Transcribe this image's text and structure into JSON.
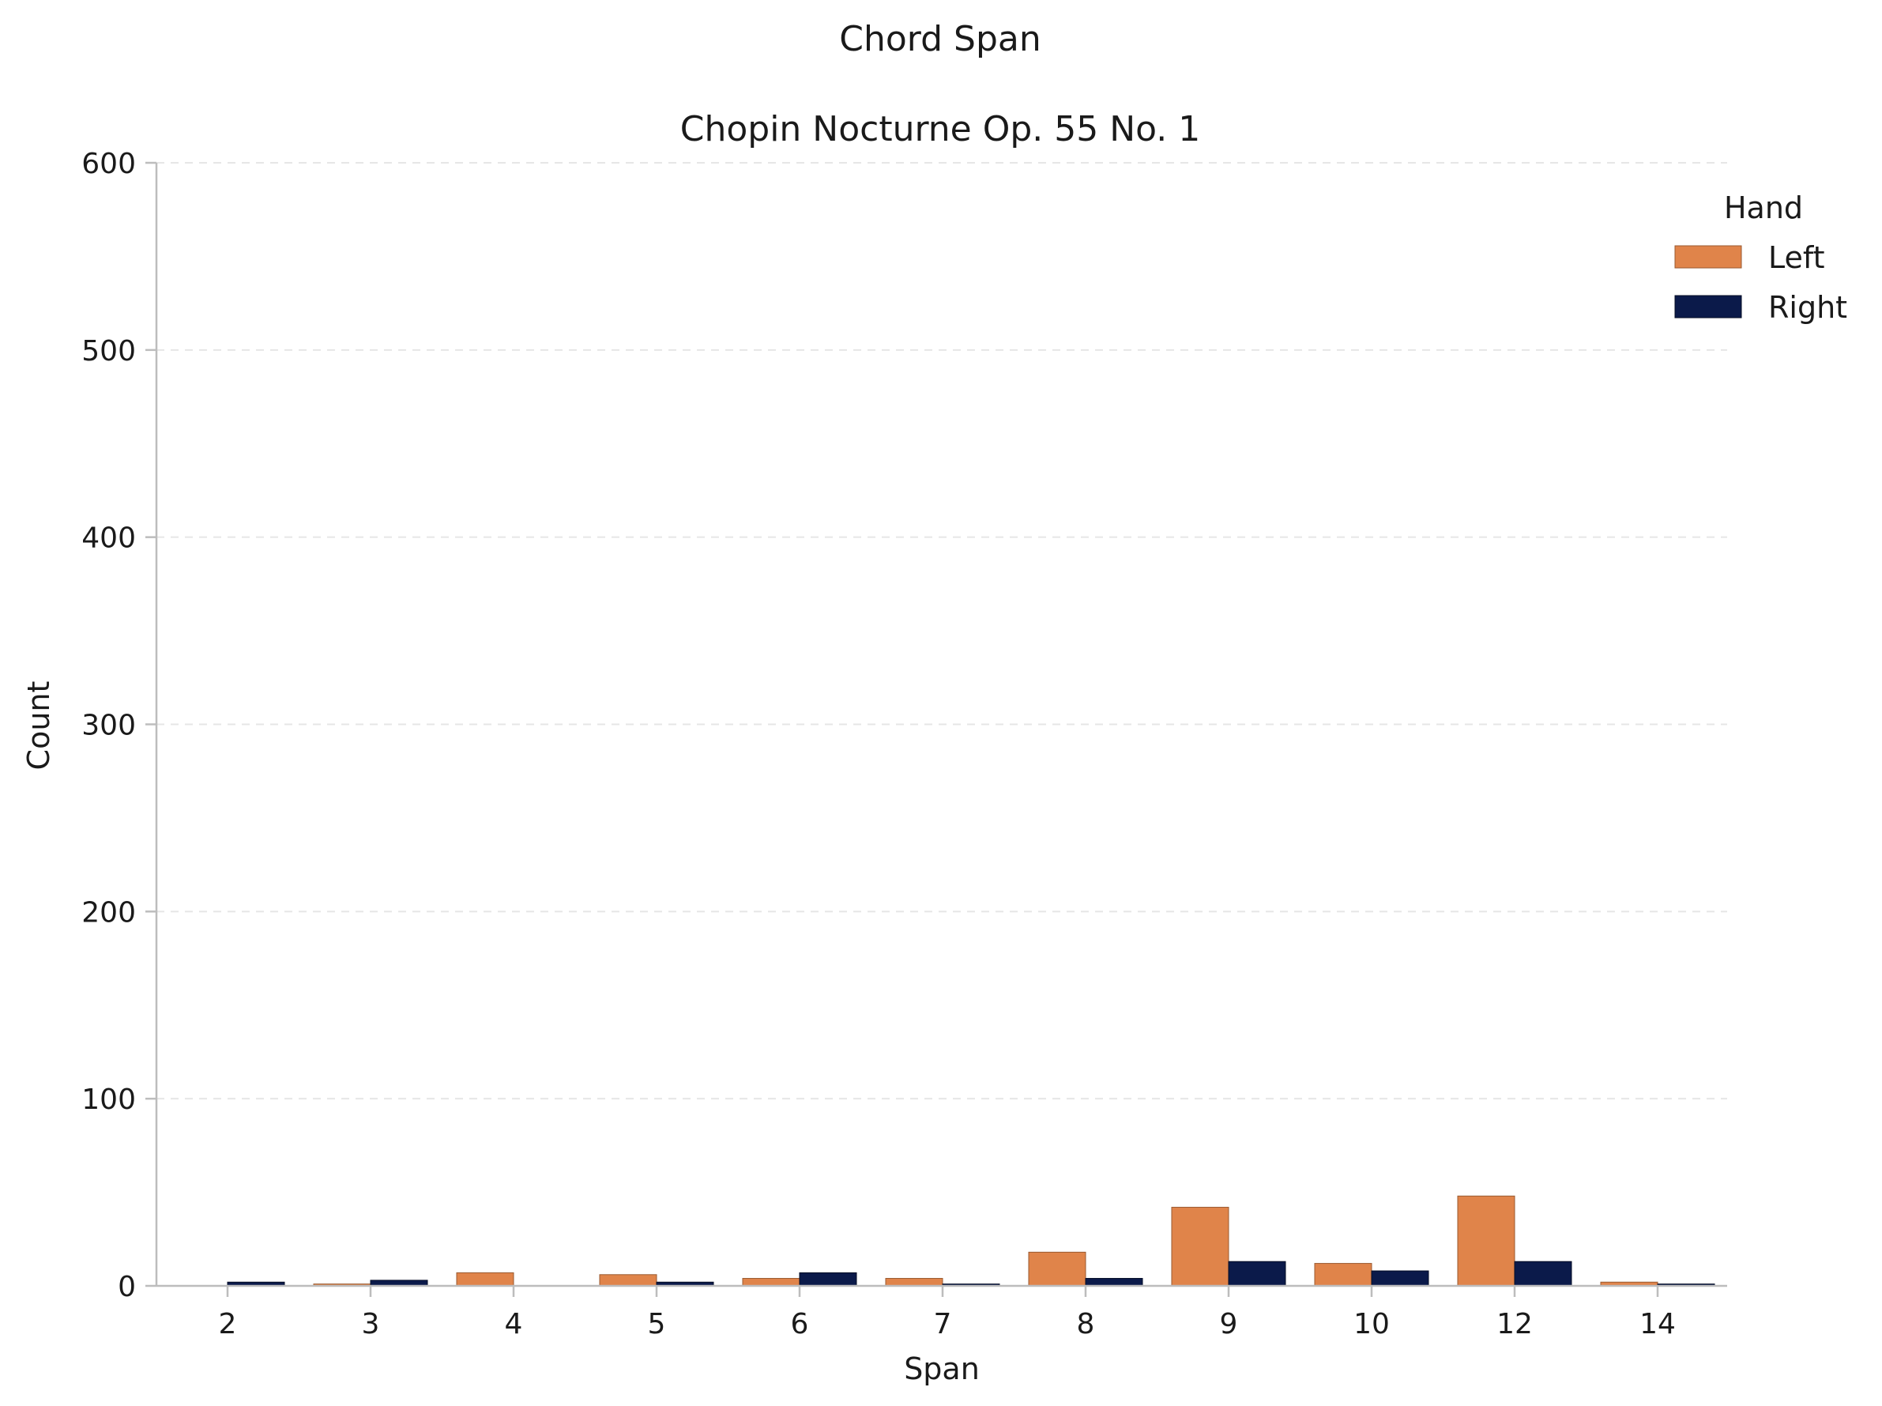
{
  "chart_data": {
    "type": "bar",
    "title": "Chord Span",
    "subtitle": "Chopin Nocturne Op. 55 No. 1",
    "xlabel": "Span",
    "ylabel": "Count",
    "ylim": [
      0,
      600
    ],
    "yticks": [
      0,
      100,
      200,
      300,
      400,
      500,
      600
    ],
    "grid": "horizontal dashed",
    "categories": [
      "2",
      "3",
      "4",
      "5",
      "6",
      "7",
      "8",
      "9",
      "10",
      "12",
      "14"
    ],
    "legend": {
      "title": "Hand",
      "placement": "top-right"
    },
    "series": [
      {
        "name": "Left",
        "color": "#e0844a",
        "values": [
          0,
          1,
          7,
          6,
          4,
          4,
          18,
          42,
          12,
          48,
          2
        ]
      },
      {
        "name": "Right",
        "color": "#0b1a4a",
        "values": [
          2,
          3,
          0,
          2,
          7,
          1,
          4,
          13,
          8,
          13,
          1
        ]
      }
    ]
  }
}
